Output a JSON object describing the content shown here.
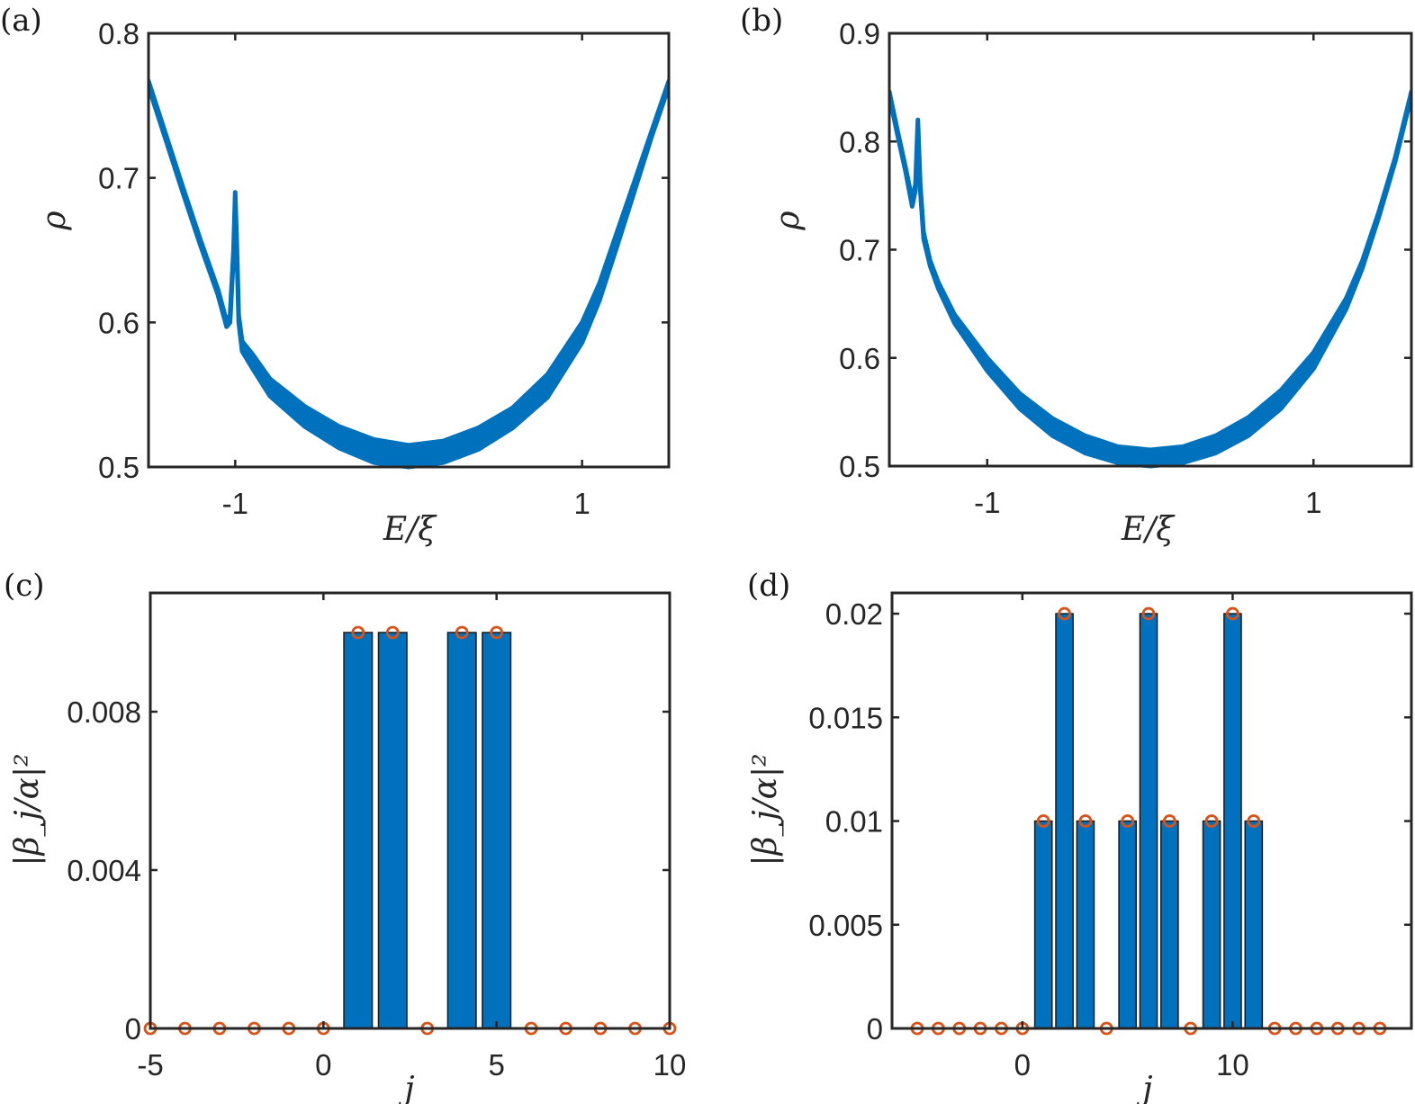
{
  "colors": {
    "curve": "#0072BD",
    "bar": "#0072BD",
    "bar_edge": "#1a1a1a",
    "marker": "#D95319",
    "axis": "#262626"
  },
  "chart_data": [
    {
      "id": "a",
      "panel_label": "(a)",
      "type": "area",
      "title": "",
      "xlabel": "E/ξ",
      "ylabel": "ρ",
      "xlim": [
        -1.5,
        1.5
      ],
      "ylim": [
        0.5,
        0.8
      ],
      "xticks": [
        -1,
        1
      ],
      "xtick_labels": [
        "-1",
        "1"
      ],
      "yticks": [
        0.5,
        0.6,
        0.7,
        0.8
      ],
      "ytick_labels": [
        "0.5",
        "0.6",
        "0.7",
        "0.8"
      ],
      "grid": false,
      "series": [
        {
          "name": "rho",
          "upper": [
            [
              -1.5,
              0.767
            ],
            [
              -1.4,
              0.73
            ],
            [
              -1.3,
              0.693
            ],
            [
              -1.2,
              0.657
            ],
            [
              -1.1,
              0.623
            ],
            [
              -1.05,
              0.601
            ],
            [
              -1.03,
              0.605
            ],
            [
              -1.01,
              0.65
            ],
            [
              -1.0,
              0.69
            ],
            [
              -0.99,
              0.65
            ],
            [
              -0.98,
              0.605
            ],
            [
              -0.96,
              0.587
            ],
            [
              -0.9,
              0.578
            ],
            [
              -0.8,
              0.561
            ],
            [
              -0.6,
              0.542
            ],
            [
              -0.4,
              0.528
            ],
            [
              -0.2,
              0.519
            ],
            [
              0,
              0.515
            ],
            [
              0.2,
              0.518
            ],
            [
              0.4,
              0.527
            ],
            [
              0.6,
              0.541
            ],
            [
              0.8,
              0.564
            ],
            [
              1.0,
              0.6
            ],
            [
              1.1,
              0.627
            ],
            [
              1.2,
              0.662
            ],
            [
              1.3,
              0.697
            ],
            [
              1.4,
              0.732
            ],
            [
              1.5,
              0.767
            ]
          ],
          "lower": [
            [
              -1.5,
              0.763
            ],
            [
              -1.4,
              0.726
            ],
            [
              -1.3,
              0.689
            ],
            [
              -1.2,
              0.653
            ],
            [
              -1.1,
              0.619
            ],
            [
              -1.05,
              0.597
            ],
            [
              -1.03,
              0.6
            ],
            [
              -1.01,
              0.645
            ],
            [
              -1.0,
              0.684
            ],
            [
              -0.99,
              0.645
            ],
            [
              -0.98,
              0.6
            ],
            [
              -0.96,
              0.58
            ],
            [
              -0.9,
              0.568
            ],
            [
              -0.8,
              0.549
            ],
            [
              -0.6,
              0.528
            ],
            [
              -0.4,
              0.513
            ],
            [
              -0.2,
              0.503
            ],
            [
              0,
              0.5
            ],
            [
              0.2,
              0.503
            ],
            [
              0.4,
              0.512
            ],
            [
              0.6,
              0.527
            ],
            [
              0.8,
              0.548
            ],
            [
              1.0,
              0.586
            ],
            [
              1.1,
              0.615
            ],
            [
              1.2,
              0.652
            ],
            [
              1.3,
              0.69
            ],
            [
              1.4,
              0.728
            ],
            [
              1.5,
              0.763
            ]
          ]
        }
      ]
    },
    {
      "id": "b",
      "panel_label": "(b)",
      "type": "area",
      "title": "",
      "xlabel": "E/ξ",
      "ylabel": "ρ",
      "xlim": [
        -1.6,
        1.6
      ],
      "ylim": [
        0.5,
        0.9
      ],
      "xticks": [
        -1,
        1
      ],
      "xtick_labels": [
        "-1",
        "1"
      ],
      "yticks": [
        0.5,
        0.6,
        0.7,
        0.8,
        0.9
      ],
      "ytick_labels": [
        "0.5",
        "0.6",
        "0.7",
        "0.8",
        "0.9"
      ],
      "grid": false,
      "series": [
        {
          "name": "rho",
          "upper": [
            [
              -1.6,
              0.846
            ],
            [
              -1.55,
              0.81
            ],
            [
              -1.5,
              0.776
            ],
            [
              -1.46,
              0.746
            ],
            [
              -1.44,
              0.76
            ],
            [
              -1.425,
              0.82
            ],
            [
              -1.41,
              0.76
            ],
            [
              -1.39,
              0.716
            ],
            [
              -1.35,
              0.69
            ],
            [
              -1.3,
              0.67
            ],
            [
              -1.2,
              0.64
            ],
            [
              -1.0,
              0.6
            ],
            [
              -0.8,
              0.567
            ],
            [
              -0.6,
              0.544
            ],
            [
              -0.4,
              0.528
            ],
            [
              -0.2,
              0.518
            ],
            [
              0,
              0.515
            ],
            [
              0.2,
              0.518
            ],
            [
              0.4,
              0.528
            ],
            [
              0.6,
              0.545
            ],
            [
              0.8,
              0.57
            ],
            [
              1.0,
              0.605
            ],
            [
              1.2,
              0.655
            ],
            [
              1.3,
              0.69
            ],
            [
              1.4,
              0.735
            ],
            [
              1.5,
              0.785
            ],
            [
              1.6,
              0.846
            ]
          ],
          "lower": [
            [
              -1.6,
              0.842
            ],
            [
              -1.55,
              0.806
            ],
            [
              -1.5,
              0.772
            ],
            [
              -1.46,
              0.74
            ],
            [
              -1.44,
              0.755
            ],
            [
              -1.425,
              0.814
            ],
            [
              -1.41,
              0.755
            ],
            [
              -1.39,
              0.71
            ],
            [
              -1.35,
              0.685
            ],
            [
              -1.3,
              0.664
            ],
            [
              -1.2,
              0.632
            ],
            [
              -1.0,
              0.588
            ],
            [
              -0.8,
              0.553
            ],
            [
              -0.6,
              0.528
            ],
            [
              -0.4,
              0.512
            ],
            [
              -0.2,
              0.503
            ],
            [
              0,
              0.5
            ],
            [
              0.2,
              0.503
            ],
            [
              0.4,
              0.512
            ],
            [
              0.6,
              0.528
            ],
            [
              0.8,
              0.553
            ],
            [
              1.0,
              0.59
            ],
            [
              1.2,
              0.645
            ],
            [
              1.3,
              0.683
            ],
            [
              1.4,
              0.73
            ],
            [
              1.5,
              0.781
            ],
            [
              1.6,
              0.842
            ]
          ]
        }
      ]
    },
    {
      "id": "c",
      "panel_label": "(c)",
      "type": "bar",
      "title": "",
      "xlabel": "j",
      "ylabel": "|β_j/α|²",
      "xlim": [
        -5,
        10
      ],
      "ylim": [
        0,
        0.011
      ],
      "xticks": [
        -5,
        0,
        5,
        10
      ],
      "xtick_labels": [
        "-5",
        "0",
        "5",
        "10"
      ],
      "yticks": [
        0,
        0.004,
        0.008
      ],
      "ytick_labels": [
        "0",
        "0.004",
        "0.008"
      ],
      "grid": false,
      "x": [
        -5,
        -4,
        -3,
        -2,
        -1,
        0,
        1,
        2,
        3,
        4,
        5,
        6,
        7,
        8,
        9,
        10
      ],
      "series": [
        {
          "name": "bars",
          "type": "bar",
          "values": [
            0,
            0,
            0,
            0,
            0,
            0,
            0.01,
            0.01,
            0,
            0.01,
            0.01,
            0,
            0,
            0,
            0,
            0
          ]
        },
        {
          "name": "markers",
          "type": "scatter",
          "marker": "circle",
          "values": [
            0,
            0,
            0,
            0,
            0,
            0,
            0.01,
            0.01,
            0,
            0.01,
            0.01,
            0,
            0,
            0,
            0,
            0
          ]
        }
      ]
    },
    {
      "id": "d",
      "panel_label": "(d)",
      "type": "bar",
      "title": "",
      "xlabel": "j",
      "ylabel": "|β_j/α|²",
      "xlim": [
        -6.2,
        18.5
      ],
      "ylim": [
        0,
        0.021
      ],
      "xticks": [
        0,
        10
      ],
      "xtick_labels": [
        "0",
        "10"
      ],
      "yticks": [
        0,
        0.005,
        0.01,
        0.015,
        0.02
      ],
      "ytick_labels": [
        "0",
        "0.005",
        "0.01",
        "0.015",
        "0.02"
      ],
      "grid": false,
      "x": [
        -5,
        -4,
        -3,
        -2,
        -1,
        0,
        1,
        2,
        3,
        4,
        5,
        6,
        7,
        8,
        9,
        10,
        11,
        12,
        13,
        14,
        15,
        16,
        17
      ],
      "series": [
        {
          "name": "bars",
          "type": "bar",
          "values": [
            0,
            0,
            0,
            0,
            0,
            0,
            0.01,
            0.02,
            0.01,
            0,
            0.01,
            0.02,
            0.01,
            0,
            0.01,
            0.02,
            0.01,
            0,
            0,
            0,
            0,
            0,
            0
          ]
        },
        {
          "name": "markers",
          "type": "scatter",
          "marker": "circle",
          "values": [
            0,
            0,
            0,
            0,
            0,
            0,
            0.01,
            0.02,
            0.01,
            0,
            0.01,
            0.02,
            0.01,
            0,
            0.01,
            0.02,
            0.01,
            0,
            0,
            0,
            0,
            0,
            0
          ]
        }
      ]
    }
  ]
}
